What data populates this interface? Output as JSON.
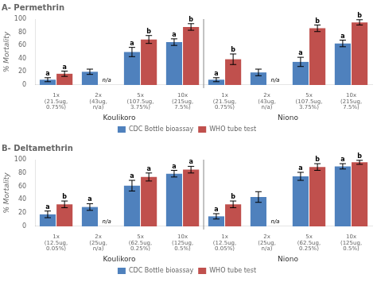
{
  "chart_data": [
    {
      "type": "bar",
      "title": "A- Permethrin",
      "ylabel": "% Mortality",
      "categories": [
        "1x\n(21.5ug,\n0.75%)",
        "2x\n(43ug,\nn/a)",
        "5x\n(107.5ug,\n3.75%)",
        "10x\n(215ug,\n7.5%)",
        "1x\n(21.5ug,\n0.75%)",
        "2x\n(43ug,\nn/a)",
        "5x\n(107.5ug,\n3.75%)",
        "10x\n(215ug,\n7.5%)"
      ],
      "group_labels": [
        "Koulikoro",
        "Niono"
      ],
      "series": [
        {
          "name": "CDC Bottle bioassay",
          "color": "#4F81BD",
          "values": [
            8,
            20,
            50,
            65,
            8,
            19,
            35,
            63
          ],
          "errors": [
            3,
            4,
            7,
            5,
            3,
            5,
            7,
            5
          ],
          "annotations": [
            "a",
            null,
            "a",
            "a",
            "a",
            null,
            "a",
            "a"
          ]
        },
        {
          "name": "WHO tube test",
          "color": "#C0504D",
          "values": [
            17,
            0,
            69,
            88,
            39,
            0,
            86,
            95
          ],
          "errors": [
            4,
            0,
            6,
            5,
            8,
            0,
            5,
            4
          ],
          "annotations": [
            "a",
            "n/a",
            "b",
            "b",
            "b",
            "n/a",
            "b",
            "b"
          ]
        }
      ],
      "ylim": [
        0,
        100
      ],
      "yticks": [
        0,
        20,
        40,
        60,
        80,
        100
      ],
      "grid": false,
      "legend": "bottom"
    },
    {
      "type": "bar",
      "title": "B- Deltamethrin",
      "ylabel": "% Mortality",
      "categories": [
        "1x\n(12.5ug,\n0.05%)",
        "2x\n(25ug,\nn/a)",
        "5x\n(62.5ug,\n0.25%)",
        "10x\n(125ug,\n0.5%)",
        "1x\n(12.5ug,\n0.05%)",
        "2x\n(25ug,\nn/a)",
        "5x\n(62.5ug,\n0.25%)",
        "10x\n(125ug,\n0.5%)"
      ],
      "group_labels": [
        "Koulikoro",
        "Niono"
      ],
      "series": [
        {
          "name": "CDC Bottle bioassay",
          "color": "#4F81BD",
          "values": [
            18,
            29,
            61,
            79,
            15,
            44,
            75,
            90
          ],
          "errors": [
            5,
            5,
            8,
            5,
            4,
            8,
            6,
            4
          ],
          "annotations": [
            "a",
            "a",
            "a",
            "a",
            "a",
            null,
            "a",
            "a"
          ]
        },
        {
          "name": "WHO tube test",
          "color": "#C0504D",
          "values": [
            33,
            0,
            74,
            85,
            33,
            0,
            89,
            96
          ],
          "errors": [
            5,
            0,
            6,
            5,
            5,
            0,
            5,
            3
          ],
          "annotations": [
            "b",
            "n/a",
            "a",
            "a",
            "b",
            "n/a",
            "b",
            "b"
          ]
        }
      ],
      "ylim": [
        0,
        100
      ],
      "yticks": [
        0,
        20,
        40,
        60,
        80,
        100
      ],
      "grid": false,
      "legend": "bottom"
    }
  ]
}
